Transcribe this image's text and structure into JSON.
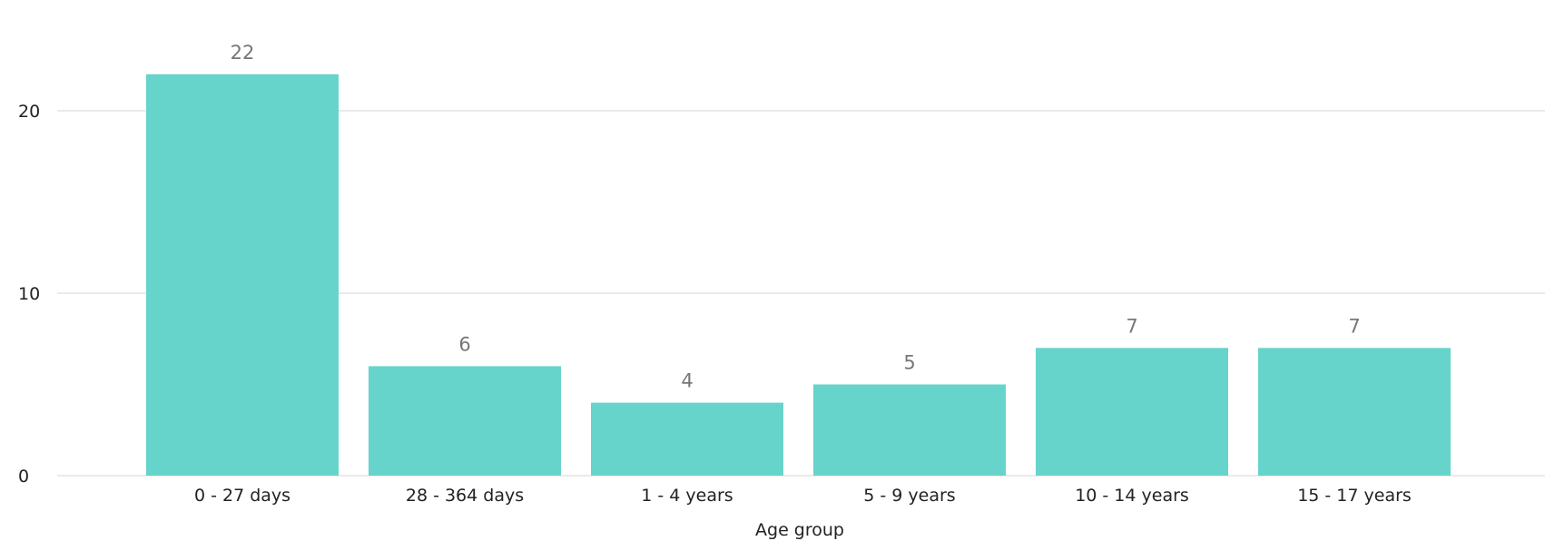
{
  "chart_data": {
    "type": "bar",
    "categories": [
      "0 - 27 days",
      "28 - 364 days",
      "1 - 4 years",
      "5 - 9 years",
      "10 - 14 years",
      "15 - 17 years"
    ],
    "values": [
      22,
      6,
      4,
      5,
      7,
      7
    ],
    "title": "",
    "xlabel": "Age group",
    "ylabel": "",
    "ylim": [
      0,
      22
    ],
    "yticks": [
      0,
      10,
      20
    ],
    "grid": true,
    "legend": "none",
    "bar_color": "#67d4cb",
    "data_label_color": "#777777"
  }
}
